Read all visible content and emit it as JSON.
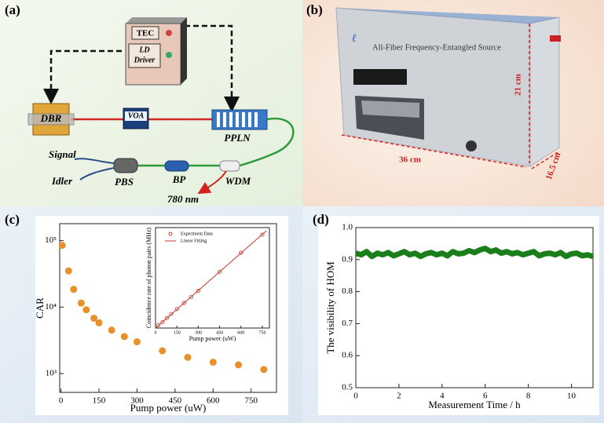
{
  "panels": {
    "a": "(a)",
    "b": "(b)",
    "c": "(c)",
    "d": "(d)"
  },
  "diagram": {
    "tec": "TEC",
    "ld_driver": [
      "LD",
      "Driver"
    ],
    "dbr": "DBR",
    "voa": "VOA",
    "ppln": "PPLN",
    "signal": "Signal",
    "idler": "Idler",
    "pbs": "PBS",
    "bp": "BP",
    "wdm": "WDM",
    "wavelength": "780 nm"
  },
  "photo": {
    "brand": "All-Fiber Frequency-Entangled Source",
    "height": "21 cm",
    "width": "36 cm",
    "depth": "16.5 cm"
  },
  "chart_data": [
    {
      "type": "scatter",
      "xlabel": "Pump power (uW)",
      "ylabel": "CAR",
      "log_y": true,
      "x": [
        5,
        30,
        50,
        80,
        100,
        130,
        150,
        200,
        250,
        300,
        400,
        500,
        600,
        700,
        800
      ],
      "values": [
        85000,
        35000,
        18500,
        11500,
        9100,
        6800,
        5800,
        4500,
        3600,
        3000,
        2200,
        1750,
        1480,
        1350,
        1150
      ],
      "color": "#e8902a",
      "xlim": [
        -5,
        850
      ],
      "xticks": [
        0,
        150,
        300,
        450,
        600,
        750
      ],
      "ylim": [
        520,
        180000
      ],
      "yticks": [
        {
          "value": 1000,
          "label": "10³"
        },
        {
          "value": 10000,
          "label": "10⁴"
        },
        {
          "value": 100000,
          "label": "10⁵"
        }
      ]
    },
    {
      "type": "scatter",
      "xlabel": "Pump power (uW)",
      "ylabel": "Coincidence rate of photon pairs (MHz)",
      "series": [
        {
          "name": "Experiment Data",
          "color": "#c0392b",
          "style": "open-circle",
          "x": [
            20,
            50,
            80,
            110,
            150,
            200,
            250,
            300,
            450,
            600,
            750
          ],
          "values": [
            0.03,
            0.06,
            0.1,
            0.14,
            0.19,
            0.25,
            0.31,
            0.37,
            0.56,
            0.75,
            0.93
          ]
        },
        {
          "name": "Linear Fitting",
          "color": "#c0392b",
          "style": "line",
          "x": [
            0,
            780
          ],
          "values": [
            0,
            0.97
          ]
        }
      ],
      "legend": "upper left",
      "xlim": [
        0,
        800
      ],
      "xticks": [
        0,
        150,
        300,
        450,
        600,
        750
      ],
      "ylim": [
        0,
        1
      ]
    },
    {
      "type": "line",
      "xlabel": "Measurement Time / h",
      "ylabel": "The visibility of HOM",
      "color": "#1a7f1a",
      "x": [
        0,
        0.25,
        0.5,
        0.75,
        1,
        1.25,
        1.5,
        1.75,
        2,
        2.25,
        2.5,
        2.75,
        3,
        3.25,
        3.5,
        3.75,
        4,
        4.25,
        4.5,
        4.75,
        5,
        5.25,
        5.5,
        5.75,
        6,
        6.25,
        6.5,
        6.75,
        7,
        7.25,
        7.5,
        7.75,
        8,
        8.25,
        8.5,
        8.75,
        9,
        9.25,
        9.5,
        9.75,
        10,
        10.25,
        10.5,
        10.75,
        11
      ],
      "values": [
        0.92,
        0.915,
        0.925,
        0.91,
        0.92,
        0.915,
        0.922,
        0.912,
        0.918,
        0.925,
        0.915,
        0.92,
        0.91,
        0.918,
        0.922,
        0.915,
        0.92,
        0.912,
        0.925,
        0.918,
        0.92,
        0.928,
        0.922,
        0.93,
        0.935,
        0.925,
        0.93,
        0.92,
        0.925,
        0.918,
        0.922,
        0.915,
        0.92,
        0.925,
        0.912,
        0.918,
        0.92,
        0.915,
        0.922,
        0.91,
        0.918,
        0.92,
        0.912,
        0.915,
        0.91
      ],
      "xlim": [
        0,
        11
      ],
      "xticks": [
        0,
        2,
        4,
        6,
        8,
        10
      ],
      "ylim": [
        0.5,
        1
      ],
      "yticks": [
        0.5,
        0.6,
        0.7,
        0.8,
        0.9,
        {
          "value": 1,
          "label": "1.0"
        }
      ]
    }
  ]
}
